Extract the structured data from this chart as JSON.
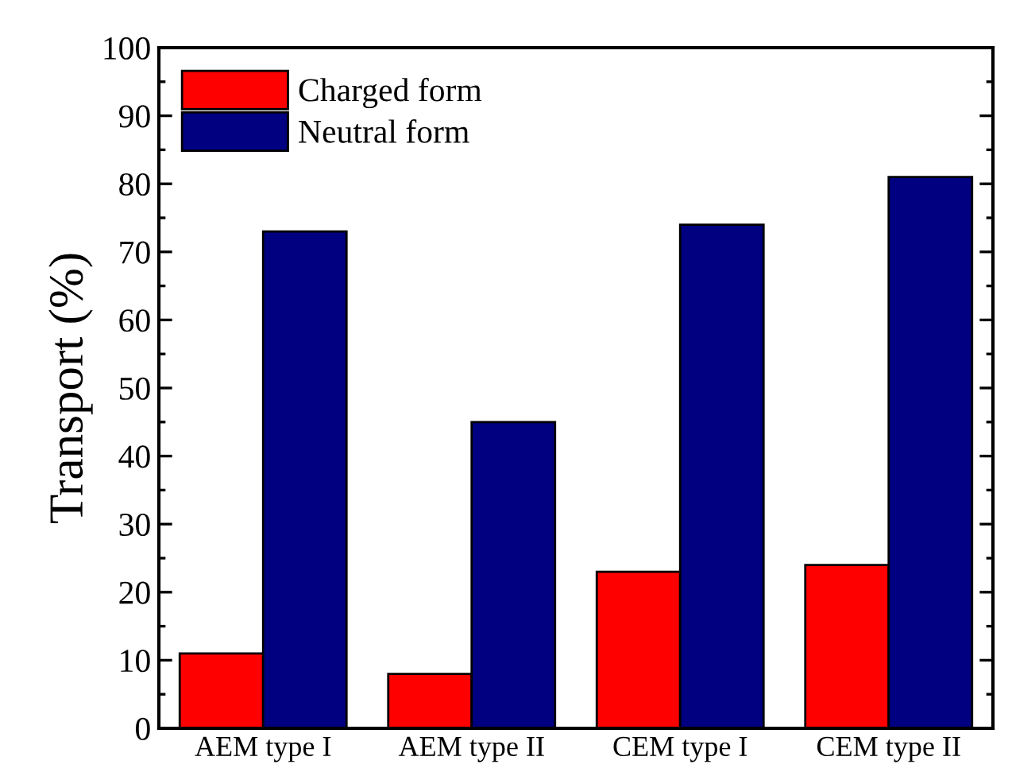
{
  "chart_data": {
    "type": "bar",
    "ylabel": "Transport (%)",
    "categories": [
      "AEM type I",
      "AEM type II",
      "CEM type I",
      "CEM type II"
    ],
    "series": [
      {
        "name": "Charged form",
        "color": "#ff0000",
        "values": [
          11,
          8,
          23,
          24
        ]
      },
      {
        "name": "Neutral form",
        "color": "#000080",
        "values": [
          73,
          45,
          74,
          81
        ]
      }
    ],
    "ylim": [
      0,
      100
    ],
    "yticks": [
      0,
      10,
      20,
      30,
      40,
      50,
      60,
      70,
      80,
      90,
      100
    ],
    "legend": "top left"
  }
}
